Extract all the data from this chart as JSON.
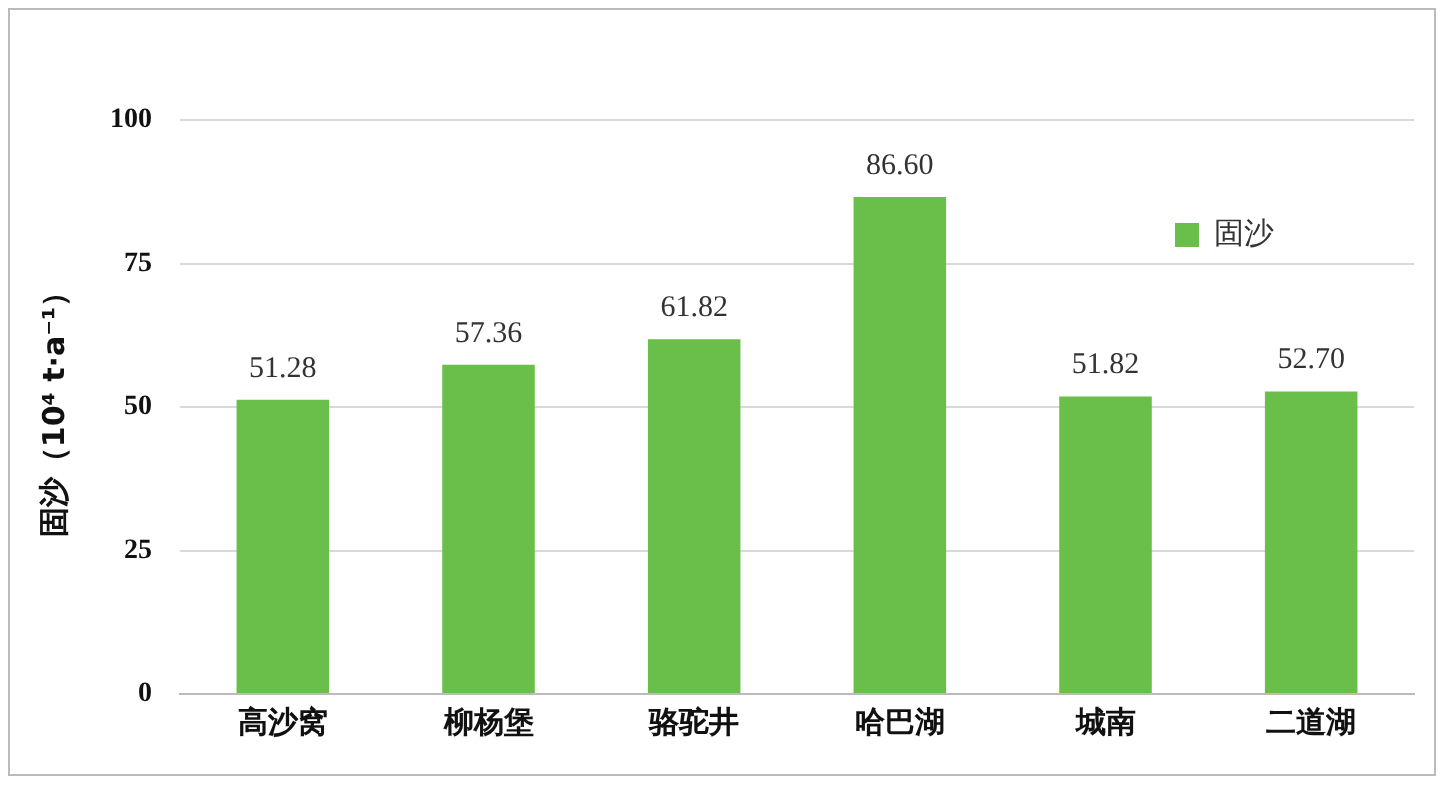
{
  "chart_data": {
    "type": "bar",
    "ylabel": "固沙（10⁴ t·a⁻¹）",
    "categories": [
      "高沙窝",
      "柳杨堡",
      "骆驼井",
      "哈巴湖",
      "城南",
      "二道湖"
    ],
    "series": [
      {
        "name": "固沙",
        "color": "#6abf4b",
        "values": [
          51.28,
          57.36,
          61.82,
          86.6,
          51.82,
          52.7
        ]
      }
    ],
    "value_labels": [
      "51.28",
      "57.36",
      "61.82",
      "86.60",
      "51.82",
      "52.70"
    ],
    "ylim": [
      0,
      100
    ],
    "yticks": [
      0,
      25,
      50,
      75,
      100
    ],
    "grid": "y",
    "legend": "top right"
  }
}
